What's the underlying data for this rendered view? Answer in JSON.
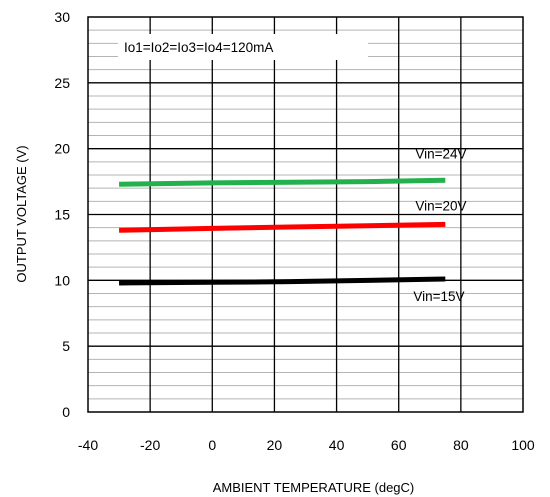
{
  "chart_data": {
    "type": "line",
    "title": "",
    "xlabel": "AMBIENT TEMPERATURE   (degC)",
    "ylabel": "OUTPUT VOLTAGE  (V)",
    "xlim": [
      -40,
      100
    ],
    "ylim": [
      0,
      30
    ],
    "x_ticks": [
      -40,
      -20,
      0,
      20,
      40,
      60,
      80,
      100
    ],
    "y_ticks": [
      0,
      5,
      10,
      15,
      20,
      25,
      30
    ],
    "x_major_step": 20,
    "y_major_step": 5,
    "y_minor_step": 1,
    "grid": true,
    "annotation": "Io1=Io2=Io3=Io4=120mA",
    "series": [
      {
        "name": "Vin=24V",
        "color": "#22b14c",
        "x": [
          -30,
          0,
          25,
          50,
          75
        ],
        "y": [
          17.3,
          17.4,
          17.45,
          17.5,
          17.6
        ]
      },
      {
        "name": "Vin=20V",
        "color": "#ff0000",
        "x": [
          -30,
          0,
          25,
          50,
          75
        ],
        "y": [
          13.8,
          13.95,
          14.05,
          14.15,
          14.25
        ]
      },
      {
        "name": "Vin=15V",
        "color": "#000000",
        "x": [
          -30,
          0,
          25,
          50,
          75
        ],
        "y": [
          9.8,
          9.85,
          9.9,
          10.0,
          10.1
        ]
      }
    ]
  }
}
